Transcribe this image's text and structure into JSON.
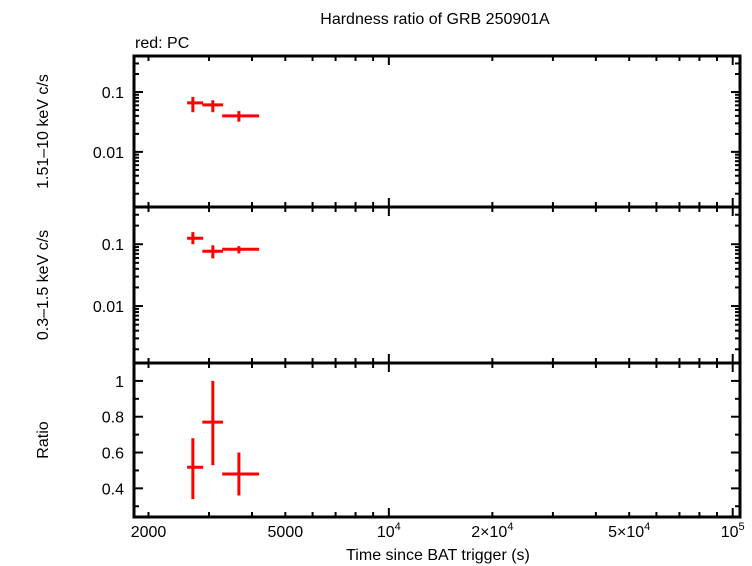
{
  "chart_data": {
    "type": "scatter",
    "title": "Hardness ratio of GRB 250901A",
    "legend_note": "red: PC",
    "xlabel": "Time since BAT trigger (s)",
    "xscale": "log",
    "xlim": [
      1815,
      105000
    ],
    "xticks": [
      {
        "value": 2000,
        "label": "2000"
      },
      {
        "value": 5000,
        "label": "5000"
      },
      {
        "value": 10000,
        "label": "10",
        "sup": "4"
      },
      {
        "value": 20000,
        "label": "2×10",
        "sup": "4"
      },
      {
        "value": 50000,
        "label": "5×10",
        "sup": "4"
      },
      {
        "value": 100000,
        "label": "10",
        "sup": "5"
      }
    ],
    "color": "#ff0000",
    "panels": [
      {
        "ylabel": "1.51–10 keV c/s",
        "yscale": "log",
        "ylim": [
          0.0012,
          0.4
        ],
        "yticks": [
          {
            "value": 0.1,
            "label": "0.1"
          },
          {
            "value": 0.01,
            "label": "0.01"
          }
        ],
        "points": [
          {
            "x": 2692,
            "xlo": 2590,
            "xhi": 2885,
            "y": 0.066,
            "ylo": 0.046,
            "yhi": 0.083
          },
          {
            "x": 3077,
            "xlo": 2868,
            "xhi": 3296,
            "y": 0.061,
            "ylo": 0.046,
            "yhi": 0.073
          },
          {
            "x": 3664,
            "xlo": 3276,
            "xhi": 4194,
            "y": 0.04,
            "ylo": 0.032,
            "yhi": 0.048
          }
        ]
      },
      {
        "ylabel": "0.3–1.5 keV c/s",
        "yscale": "log",
        "ylim": [
          0.0012,
          0.4
        ],
        "yticks": [
          {
            "value": 0.1,
            "label": "0.1"
          },
          {
            "value": 0.01,
            "label": "0.01"
          }
        ],
        "points": [
          {
            "x": 2692,
            "xlo": 2590,
            "xhi": 2885,
            "y": 0.125,
            "ylo": 0.1,
            "yhi": 0.157
          },
          {
            "x": 3077,
            "xlo": 2868,
            "xhi": 3296,
            "y": 0.077,
            "ylo": 0.059,
            "yhi": 0.096
          },
          {
            "x": 3664,
            "xlo": 3276,
            "xhi": 4194,
            "y": 0.083,
            "ylo": 0.071,
            "yhi": 0.093
          }
        ]
      },
      {
        "ylabel": "Ratio",
        "yscale": "linear",
        "ylim": [
          0.24,
          1.1
        ],
        "yticks": [
          {
            "value": 1,
            "label": "1"
          },
          {
            "value": 0.8,
            "label": "0.8"
          },
          {
            "value": 0.6,
            "label": "0.6"
          },
          {
            "value": 0.4,
            "label": "0.4"
          }
        ],
        "points": [
          {
            "x": 2692,
            "xlo": 2590,
            "xhi": 2885,
            "y": 0.518,
            "ylo": 0.34,
            "yhi": 0.68
          },
          {
            "x": 3077,
            "xlo": 2868,
            "xhi": 3296,
            "y": 0.77,
            "ylo": 0.53,
            "yhi": 1.0
          },
          {
            "x": 3664,
            "xlo": 3276,
            "xhi": 4194,
            "y": 0.48,
            "ylo": 0.36,
            "yhi": 0.6
          }
        ]
      }
    ]
  }
}
